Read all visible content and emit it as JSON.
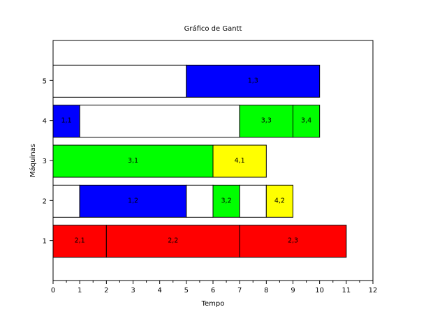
{
  "chart_data": {
    "type": "bar",
    "title": "Gráfico de Gantt",
    "xlabel": "Tempo",
    "ylabel": "Máquinas",
    "xlim": [
      0,
      12
    ],
    "ylim": [
      0,
      6
    ],
    "x_ticks": [
      "0",
      "1",
      "2",
      "3",
      "4",
      "5",
      "6",
      "7",
      "8",
      "9",
      "10",
      "11",
      "12"
    ],
    "y_ticks": [
      "1",
      "2",
      "3",
      "4",
      "5"
    ],
    "grid": false,
    "legend": "none",
    "colors": {
      "red": "#ff0000",
      "blue": "#0000ff",
      "green": "#00ff00",
      "yellow": "#ffff00",
      "white": "#ffffff"
    },
    "bars": [
      {
        "machine": 1,
        "start": 0,
        "end": 2,
        "label": "2,1",
        "color": "red"
      },
      {
        "machine": 1,
        "start": 2,
        "end": 7,
        "label": "2,2",
        "color": "red"
      },
      {
        "machine": 1,
        "start": 7,
        "end": 11,
        "label": "2,3",
        "color": "red"
      },
      {
        "machine": 2,
        "start": 0,
        "end": 1,
        "label": "",
        "color": "white"
      },
      {
        "machine": 2,
        "start": 1,
        "end": 5,
        "label": "1,2",
        "color": "blue"
      },
      {
        "machine": 2,
        "start": 5,
        "end": 6,
        "label": "",
        "color": "white"
      },
      {
        "machine": 2,
        "start": 6,
        "end": 7,
        "label": "3,2",
        "color": "green"
      },
      {
        "machine": 2,
        "start": 7,
        "end": 8,
        "label": "",
        "color": "white"
      },
      {
        "machine": 2,
        "start": 8,
        "end": 9,
        "label": "4,2",
        "color": "yellow"
      },
      {
        "machine": 3,
        "start": 0,
        "end": 6,
        "label": "3,1",
        "color": "green"
      },
      {
        "machine": 3,
        "start": 6,
        "end": 8,
        "label": "4,1",
        "color": "yellow"
      },
      {
        "machine": 4,
        "start": 0,
        "end": 1,
        "label": "1,1",
        "color": "blue"
      },
      {
        "machine": 4,
        "start": 1,
        "end": 7,
        "label": "",
        "color": "white"
      },
      {
        "machine": 4,
        "start": 7,
        "end": 9,
        "label": "3,3",
        "color": "green"
      },
      {
        "machine": 4,
        "start": 9,
        "end": 10,
        "label": "3,4",
        "color": "green"
      },
      {
        "machine": 5,
        "start": 0,
        "end": 5,
        "label": "",
        "color": "white"
      },
      {
        "machine": 5,
        "start": 5,
        "end": 10,
        "label": "1,3",
        "color": "blue"
      }
    ]
  }
}
